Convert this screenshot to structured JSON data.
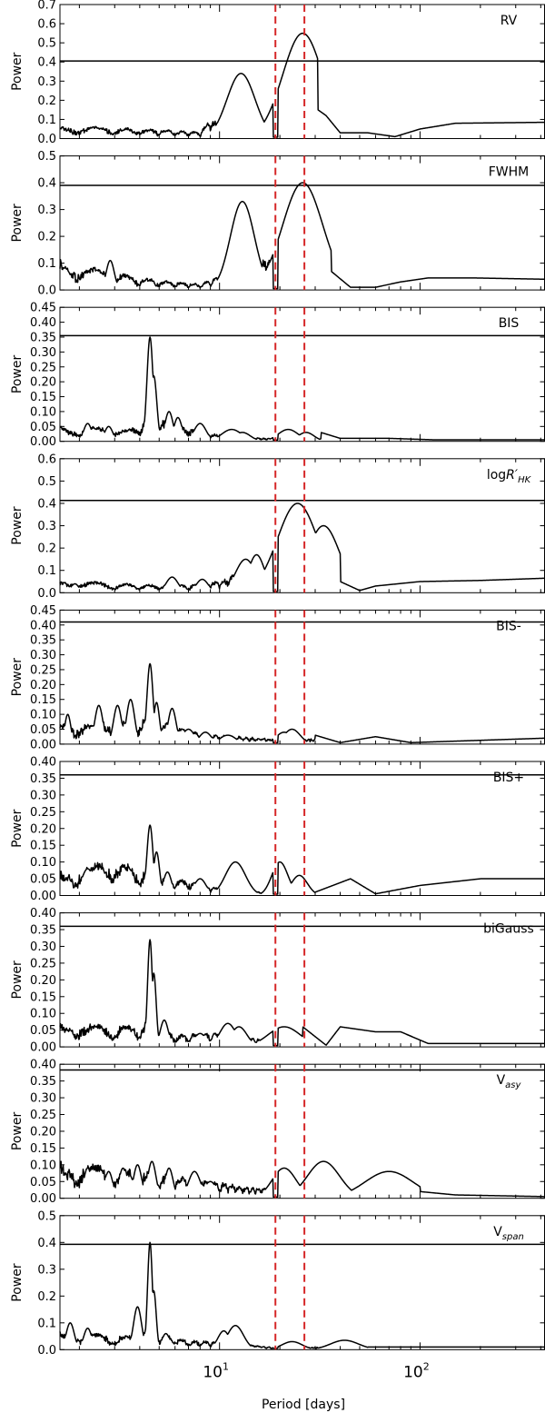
{
  "chart_data": {
    "type": "line",
    "xlabel": "Period [days]",
    "ylabel": "Power",
    "xscale": "log",
    "xlim": [
      1.6,
      420
    ],
    "xticks": [
      {
        "value": 10,
        "base": "10",
        "exp": "1"
      },
      {
        "value": 100,
        "base": "10",
        "exp": "2"
      }
    ],
    "vlines": [
      19,
      26.5
    ],
    "vline_color": "#d62728",
    "line_color": "#000000",
    "panels": [
      {
        "label": "RV",
        "sub": "",
        "ylim": [
          0,
          0.7
        ],
        "yticks": [
          "0.0",
          "0.1",
          "0.2",
          "0.3",
          "0.4",
          "0.5",
          "0.6",
          "0.7"
        ],
        "threshold": 0.405,
        "base": [
          [
            1.6,
            0.05
          ],
          [
            5,
            0.04
          ],
          [
            8,
            0.03
          ],
          [
            9,
            0.1
          ],
          [
            10,
            0.07
          ],
          [
            11,
            0.1
          ]
        ],
        "peaks": [
          [
            12.8,
            0.34,
            0.07
          ],
          [
            14,
            0.15,
            0.05
          ],
          [
            20.5,
            0.22,
            0.04
          ],
          [
            22.5,
            0.24,
            0.05
          ],
          [
            26,
            0.55,
            0.1
          ],
          [
            29,
            0.2,
            0.07
          ]
        ],
        "tail": [
          [
            31,
            0.15
          ],
          [
            34,
            0.12
          ],
          [
            40,
            0.03
          ],
          [
            55,
            0.03
          ],
          [
            75,
            0.01
          ],
          [
            100,
            0.05
          ],
          [
            150,
            0.08
          ],
          [
            420,
            0.085
          ]
        ]
      },
      {
        "label": "FWHM",
        "sub": "",
        "ylim": [
          0,
          0.5
        ],
        "yticks": [
          "0.0",
          "0.1",
          "0.2",
          "0.3",
          "0.4",
          "0.5"
        ],
        "threshold": 0.39,
        "base": [
          [
            1.6,
            0.08
          ],
          [
            3,
            0.05
          ],
          [
            5,
            0.03
          ],
          [
            8,
            0.02
          ],
          [
            10,
            0.05
          ],
          [
            11,
            0.12
          ]
        ],
        "peaks": [
          [
            1.7,
            0.08,
            0.03
          ],
          [
            2.85,
            0.11,
            0.02
          ],
          [
            13,
            0.33,
            0.06
          ],
          [
            14.5,
            0.12,
            0.04
          ],
          [
            20.5,
            0.18,
            0.04
          ],
          [
            26,
            0.4,
            0.1
          ],
          [
            30,
            0.13,
            0.06
          ]
        ],
        "tail": [
          [
            36,
            0.07
          ],
          [
            45,
            0.01
          ],
          [
            60,
            0.01
          ],
          [
            80,
            0.03
          ],
          [
            110,
            0.045
          ],
          [
            180,
            0.045
          ],
          [
            420,
            0.04
          ]
        ]
      },
      {
        "label": "BIS",
        "sub": "",
        "ylim": [
          0,
          0.45
        ],
        "yticks": [
          "0.00",
          "0.05",
          "0.10",
          "0.15",
          "0.20",
          "0.25",
          "0.30",
          "0.35",
          "0.40",
          "0.45"
        ],
        "threshold": 0.355,
        "base": [
          [
            1.6,
            0.04
          ],
          [
            3.5,
            0.03
          ],
          [
            4.3,
            0.06
          ],
          [
            4.6,
            0.07
          ],
          [
            7,
            0.04
          ],
          [
            10,
            0.02
          ],
          [
            18,
            0.01
          ]
        ],
        "peaks": [
          [
            2.2,
            0.06,
            0.02
          ],
          [
            2.8,
            0.05,
            0.02
          ],
          [
            4.5,
            0.35,
            0.015
          ],
          [
            4.7,
            0.22,
            0.015
          ],
          [
            5.6,
            0.1,
            0.02
          ],
          [
            6.2,
            0.08,
            0.02
          ],
          [
            8,
            0.06,
            0.03
          ],
          [
            11.5,
            0.04,
            0.05
          ],
          [
            13,
            0.03,
            0.04
          ],
          [
            22,
            0.04,
            0.05
          ],
          [
            27,
            0.03,
            0.04
          ]
        ],
        "tail": [
          [
            32,
            0.03
          ],
          [
            40,
            0.01
          ],
          [
            70,
            0.01
          ],
          [
            120,
            0.005
          ],
          [
            420,
            0.005
          ]
        ]
      },
      {
        "label": "log",
        "sub": "HK",
        "ylim": [
          0,
          0.6
        ],
        "yticks": [
          "0.0",
          "0.1",
          "0.2",
          "0.3",
          "0.4",
          "0.5",
          "0.6"
        ],
        "threshold": 0.413,
        "base": [
          [
            1.6,
            0.04
          ],
          [
            4,
            0.03
          ],
          [
            7,
            0.03
          ],
          [
            10,
            0.05
          ],
          [
            12,
            0.08
          ],
          [
            18,
            0.01
          ]
        ],
        "peaks": [
          [
            1.9,
            0.04,
            0.02
          ],
          [
            2.3,
            0.03,
            0.02
          ],
          [
            5.8,
            0.07,
            0.03
          ],
          [
            8.2,
            0.06,
            0.03
          ],
          [
            13.5,
            0.15,
            0.05
          ],
          [
            15.3,
            0.17,
            0.04
          ],
          [
            24.5,
            0.4,
            0.1
          ],
          [
            33,
            0.3,
            0.08
          ]
        ],
        "tail": [
          [
            40,
            0.05
          ],
          [
            50,
            0.01
          ],
          [
            60,
            0.03
          ],
          [
            100,
            0.05
          ],
          [
            200,
            0.055
          ],
          [
            420,
            0.065
          ]
        ]
      },
      {
        "label": "BIS-",
        "sub": "",
        "ylim": [
          0,
          0.45
        ],
        "yticks": [
          "0.00",
          "0.05",
          "0.10",
          "0.15",
          "0.20",
          "0.25",
          "0.30",
          "0.35",
          "0.40",
          "0.45"
        ],
        "threshold": 0.41,
        "base": [
          [
            1.6,
            0.05
          ],
          [
            3.5,
            0.06
          ],
          [
            4.3,
            0.08
          ],
          [
            6,
            0.05
          ],
          [
            9,
            0.03
          ],
          [
            18,
            0.02
          ]
        ],
        "peaks": [
          [
            1.75,
            0.1,
            0.015
          ],
          [
            2.5,
            0.13,
            0.02
          ],
          [
            3.1,
            0.13,
            0.02
          ],
          [
            3.6,
            0.15,
            0.02
          ],
          [
            4.5,
            0.27,
            0.015
          ],
          [
            4.85,
            0.14,
            0.015
          ],
          [
            5.8,
            0.12,
            0.02
          ],
          [
            7,
            0.05,
            0.03
          ],
          [
            8.5,
            0.04,
            0.03
          ],
          [
            11,
            0.03,
            0.04
          ],
          [
            21,
            0.04,
            0.04
          ],
          [
            23,
            0.05,
            0.04
          ]
        ],
        "tail": [
          [
            30,
            0.03
          ],
          [
            40,
            0.005
          ],
          [
            60,
            0.025
          ],
          [
            90,
            0.005
          ],
          [
            150,
            0.01
          ],
          [
            420,
            0.02
          ]
        ]
      },
      {
        "label": "BIS+",
        "sub": "",
        "ylim": [
          0,
          0.4
        ],
        "yticks": [
          "0.00",
          "0.05",
          "0.10",
          "0.15",
          "0.20",
          "0.25",
          "0.30",
          "0.35",
          "0.40"
        ],
        "threshold": 0.36,
        "base": [
          [
            1.6,
            0.05
          ],
          [
            3,
            0.08
          ],
          [
            4.3,
            0.06
          ],
          [
            5,
            0.05
          ],
          [
            7,
            0.04
          ],
          [
            10,
            0.02
          ],
          [
            18,
            0.01
          ]
        ],
        "peaks": [
          [
            2.2,
            0.08,
            0.03
          ],
          [
            2.6,
            0.08,
            0.02
          ],
          [
            4.5,
            0.21,
            0.015
          ],
          [
            4.85,
            0.13,
            0.015
          ],
          [
            5.5,
            0.07,
            0.02
          ],
          [
            8,
            0.05,
            0.03
          ],
          [
            12,
            0.1,
            0.05
          ],
          [
            20,
            0.1,
            0.04
          ],
          [
            25,
            0.06,
            0.04
          ]
        ],
        "tail": [
          [
            30,
            0.01
          ],
          [
            45,
            0.05
          ],
          [
            60,
            0.005
          ],
          [
            100,
            0.03
          ],
          [
            200,
            0.05
          ],
          [
            420,
            0.05
          ]
        ]
      },
      {
        "label": "biGauss",
        "sub": "",
        "ylim": [
          0,
          0.4
        ],
        "yticks": [
          "0.00",
          "0.05",
          "0.10",
          "0.15",
          "0.20",
          "0.25",
          "0.30",
          "0.35",
          "0.40"
        ],
        "threshold": 0.36,
        "base": [
          [
            1.6,
            0.05
          ],
          [
            4,
            0.05
          ],
          [
            4.3,
            0.07
          ],
          [
            6,
            0.03
          ],
          [
            9,
            0.04
          ],
          [
            18,
            0.02
          ]
        ],
        "peaks": [
          [
            1.8,
            0.05,
            0.02
          ],
          [
            2.5,
            0.04,
            0.02
          ],
          [
            4.5,
            0.32,
            0.012
          ],
          [
            4.7,
            0.22,
            0.012
          ],
          [
            5.3,
            0.08,
            0.02
          ],
          [
            8,
            0.04,
            0.03
          ],
          [
            11,
            0.07,
            0.04
          ],
          [
            12.5,
            0.06,
            0.04
          ],
          [
            21,
            0.06,
            0.08
          ]
        ],
        "tail": [
          [
            26,
            0.06
          ],
          [
            34,
            0.005
          ],
          [
            40,
            0.06
          ],
          [
            60,
            0.045
          ],
          [
            80,
            0.045
          ],
          [
            110,
            0.01
          ],
          [
            420,
            0.01
          ]
        ]
      },
      {
        "label": "V",
        "sub": "asy",
        "ylim": [
          0,
          0.4
        ],
        "yticks": [
          "0.00",
          "0.05",
          "0.10",
          "0.15",
          "0.20",
          "0.25",
          "0.30",
          "0.35",
          "0.40"
        ],
        "threshold": 0.383,
        "base": [
          [
            1.6,
            0.08
          ],
          [
            5,
            0.06
          ],
          [
            8,
            0.05
          ],
          [
            12,
            0.04
          ],
          [
            17,
            0.03
          ],
          [
            19,
            0.0
          ]
        ],
        "peaks": [
          [
            2.2,
            0.09,
            0.02
          ],
          [
            2.8,
            0.08,
            0.02
          ],
          [
            3.3,
            0.09,
            0.02
          ],
          [
            3.9,
            0.1,
            0.02
          ],
          [
            4.6,
            0.11,
            0.02
          ],
          [
            5.6,
            0.09,
            0.02
          ],
          [
            7.5,
            0.08,
            0.03
          ],
          [
            9,
            0.05,
            0.03
          ],
          [
            21,
            0.09,
            0.06
          ],
          [
            33,
            0.11,
            0.08
          ],
          [
            70,
            0.08,
            0.12
          ]
        ],
        "tail": [
          [
            100,
            0.02
          ],
          [
            150,
            0.01
          ],
          [
            420,
            0.005
          ]
        ]
      },
      {
        "label": "V",
        "sub": "span",
        "ylim": [
          0,
          0.5
        ],
        "yticks": [
          "0.0",
          "0.1",
          "0.2",
          "0.3",
          "0.4",
          "0.5"
        ],
        "threshold": 0.393,
        "base": [
          [
            1.6,
            0.05
          ],
          [
            3.5,
            0.04
          ],
          [
            4.3,
            0.06
          ],
          [
            7,
            0.03
          ],
          [
            11,
            0.03
          ],
          [
            18,
            0.01
          ]
        ],
        "peaks": [
          [
            1.8,
            0.1,
            0.02
          ],
          [
            2.2,
            0.08,
            0.02
          ],
          [
            3.9,
            0.16,
            0.02
          ],
          [
            4.5,
            0.4,
            0.012
          ],
          [
            4.7,
            0.22,
            0.012
          ],
          [
            5.4,
            0.06,
            0.02
          ],
          [
            10.5,
            0.07,
            0.03
          ],
          [
            12,
            0.09,
            0.04
          ],
          [
            23,
            0.03,
            0.05
          ],
          [
            42,
            0.035,
            0.07
          ]
        ],
        "tail": [
          [
            55,
            0.01
          ],
          [
            100,
            0.01
          ],
          [
            420,
            0.01
          ]
        ]
      }
    ]
  }
}
